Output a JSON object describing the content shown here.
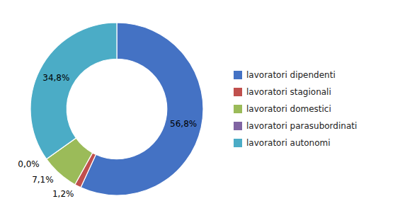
{
  "chart_data": {
    "type": "donut",
    "categories": [
      "lavoratori dipendenti",
      "lavoratori stagionali",
      "lavoratori domestici",
      "lavoratori parasubordinati",
      "lavoratori autonomi"
    ],
    "values": [
      56.8,
      1.2,
      7.1,
      0.0,
      34.8
    ],
    "value_labels": [
      "56,8%",
      "1,2%",
      "7,1%",
      "0,0%",
      "34,8%"
    ],
    "colors": [
      "#4472C4",
      "#C0504D",
      "#9BBB59",
      "#8064A2",
      "#4BACC6"
    ],
    "data_labels": true,
    "legend": "right"
  }
}
